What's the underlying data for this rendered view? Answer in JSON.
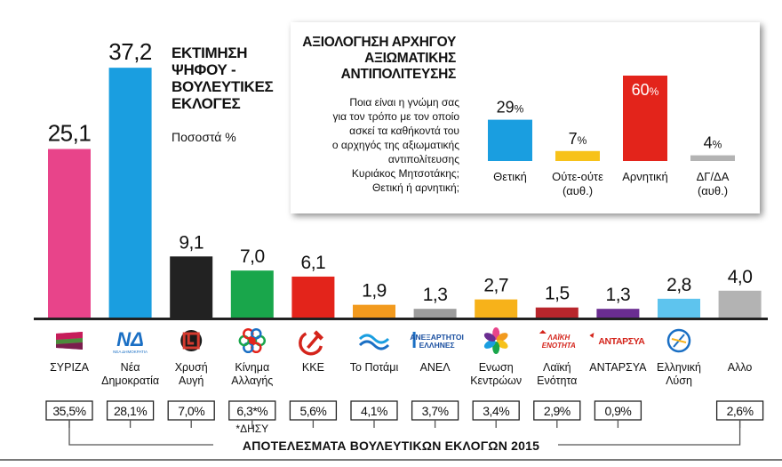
{
  "title_lines": [
    "ΕΚΤΙΜΗΣΗ",
    "ΨΗΦΟΥ -",
    "ΒΟΥΛΕΥΤΙΚΕΣ",
    "ΕΚΛΟΓΕΣ"
  ],
  "subtitle": "Ποσοστά %",
  "footer_title": "ΑΠΟΤΕΛΕΣΜΑΤΑ ΒΟΥΛΕΥΤΙΚΩΝ ΕΚΛΟΓΩΝ 2015",
  "chart_data": [
    {
      "type": "bar",
      "title": "ΕΚΤΙΜΗΣΗ ΨΗΦΟΥ - ΒΟΥΛΕΥΤΙΚΕΣ ΕΚΛΟΓΕΣ",
      "subtitle": "Ποσοστά %",
      "categories": [
        {
          "lines": [
            "ΣΥΡΙΖΑ"
          ]
        },
        {
          "lines": [
            "Νέα",
            "Δημοκρατία"
          ]
        },
        {
          "lines": [
            "Χρυσή",
            "Αυγή"
          ]
        },
        {
          "lines": [
            "Κίνημα",
            "Αλλαγής"
          ]
        },
        {
          "lines": [
            "ΚΚΕ"
          ]
        },
        {
          "lines": [
            "Το Ποτάμι"
          ]
        },
        {
          "lines": [
            "ΑΝΕΛ"
          ]
        },
        {
          "lines": [
            "Ενωση",
            "Κεντρώων"
          ]
        },
        {
          "lines": [
            "Λαϊκή",
            "Ενότητα"
          ]
        },
        {
          "lines": [
            "ΑΝΤΑΡΣΥΑ"
          ]
        },
        {
          "lines": [
            "Ελληνική",
            "Λύση"
          ]
        },
        {
          "lines": [
            "Αλλο"
          ]
        }
      ],
      "values": [
        25.1,
        37.2,
        9.1,
        7.0,
        6.1,
        1.9,
        1.3,
        2.7,
        1.5,
        1.3,
        2.8,
        4.0
      ],
      "value_labels": [
        "25,1",
        "37,2",
        "9,1",
        "7,0",
        "6,1",
        "1,9",
        "1,3",
        "2,7",
        "1,5",
        "1,3",
        "2,8",
        "4,0"
      ],
      "colors": [
        "#e8448a",
        "#1a9ee0",
        "#222222",
        "#19a64b",
        "#e3241b",
        "#f29a1e",
        "#9c9c9c",
        "#f7b21a",
        "#b8262c",
        "#6a2d91",
        "#5ec4ee",
        "#b3b3b3"
      ],
      "ylim": [
        0,
        40
      ],
      "logo_icons": [
        "syriza-flag-logo",
        "nea-dimokratia-logo",
        "chrysi-avgi-logo",
        "kinima-allagis-logo",
        "kke-hammer-sickle-logo",
        "to-potami-logo",
        "anel-logo",
        "enosi-kentroon-logo",
        "laiki-enotita-logo",
        "antarsya-logo",
        "elliniki-lysi-logo",
        null
      ],
      "logo_texts": {
        "nea_dimokratia": [
          "ΝΔ",
          "ΝΕΑ ΔΗΜΟΚΡΑΤΙΑ"
        ],
        "anel": [
          "ΑΝΕΞΑΡΤΗΤΟΙ",
          "ΕΛΛΗΝΕΣ"
        ],
        "laiki_enotita": [
          "ΛΑΪΚΗ",
          "ΕΝΟΤΗΤΑ"
        ],
        "antarsya": "ΑΝΤΑΡΣΥΑ"
      },
      "results_2015": [
        "35,5%",
        "28,1%",
        "7,0%",
        "6,3*%",
        "5,6%",
        "4,1%",
        "3,7%",
        "3,4%",
        "2,9%",
        "0,9%",
        null,
        "2,6%"
      ],
      "results_2015_note": "*ΔΗΣΥ",
      "results_2015_title": "ΑΠΟΤΕΛΕΣΜΑΤΑ ΒΟΥΛΕΥΤΙΚΩΝ ΕΚΛΟΓΩΝ 2015"
    },
    {
      "type": "bar",
      "title": "ΑΞΙΟΛΟΓΗΣΗ ΑΡΧΗΓΟΥ ΑΞΙΩΜΑΤΙΚΗΣ ΑΝΤΙΠΟΛΙΤΕΥΣΗΣ",
      "title_lines": [
        "ΑΞΙΟΛΟΓΗΣΗ ΑΡΧΗΓΟΥ",
        "ΑΞΙΩΜΑΤΙΚΗΣ",
        "ΑΝΤΙΠΟΛΙΤΕΥΣΗΣ"
      ],
      "question_lines": [
        "Ποια είναι η γνώμη σας",
        "για τον τρόπο με τον οποίο",
        "ασκεί τα καθήκοντά του",
        "ο αρχηγός της αξιωματικής",
        "αντιπολίτευσης",
        "Κυριάκος Μητσοτάκης;",
        "Θετική ή αρνητική;"
      ],
      "categories": [
        {
          "lines": [
            "Θετική"
          ]
        },
        {
          "lines": [
            "Ούτε-ούτε",
            "(αυθ.)"
          ]
        },
        {
          "lines": [
            "Αρνητική"
          ]
        },
        {
          "lines": [
            "ΔΓ/ΔΑ",
            "(αυθ.)"
          ]
        }
      ],
      "values": [
        29,
        7,
        60,
        4
      ],
      "value_labels": [
        "29",
        "7",
        "60",
        "4"
      ],
      "value_suffix": "%",
      "colors": [
        "#1a9ee0",
        "#f7c21a",
        "#e3241b",
        "#b3b3b3"
      ],
      "ylim": [
        0,
        60
      ]
    }
  ]
}
